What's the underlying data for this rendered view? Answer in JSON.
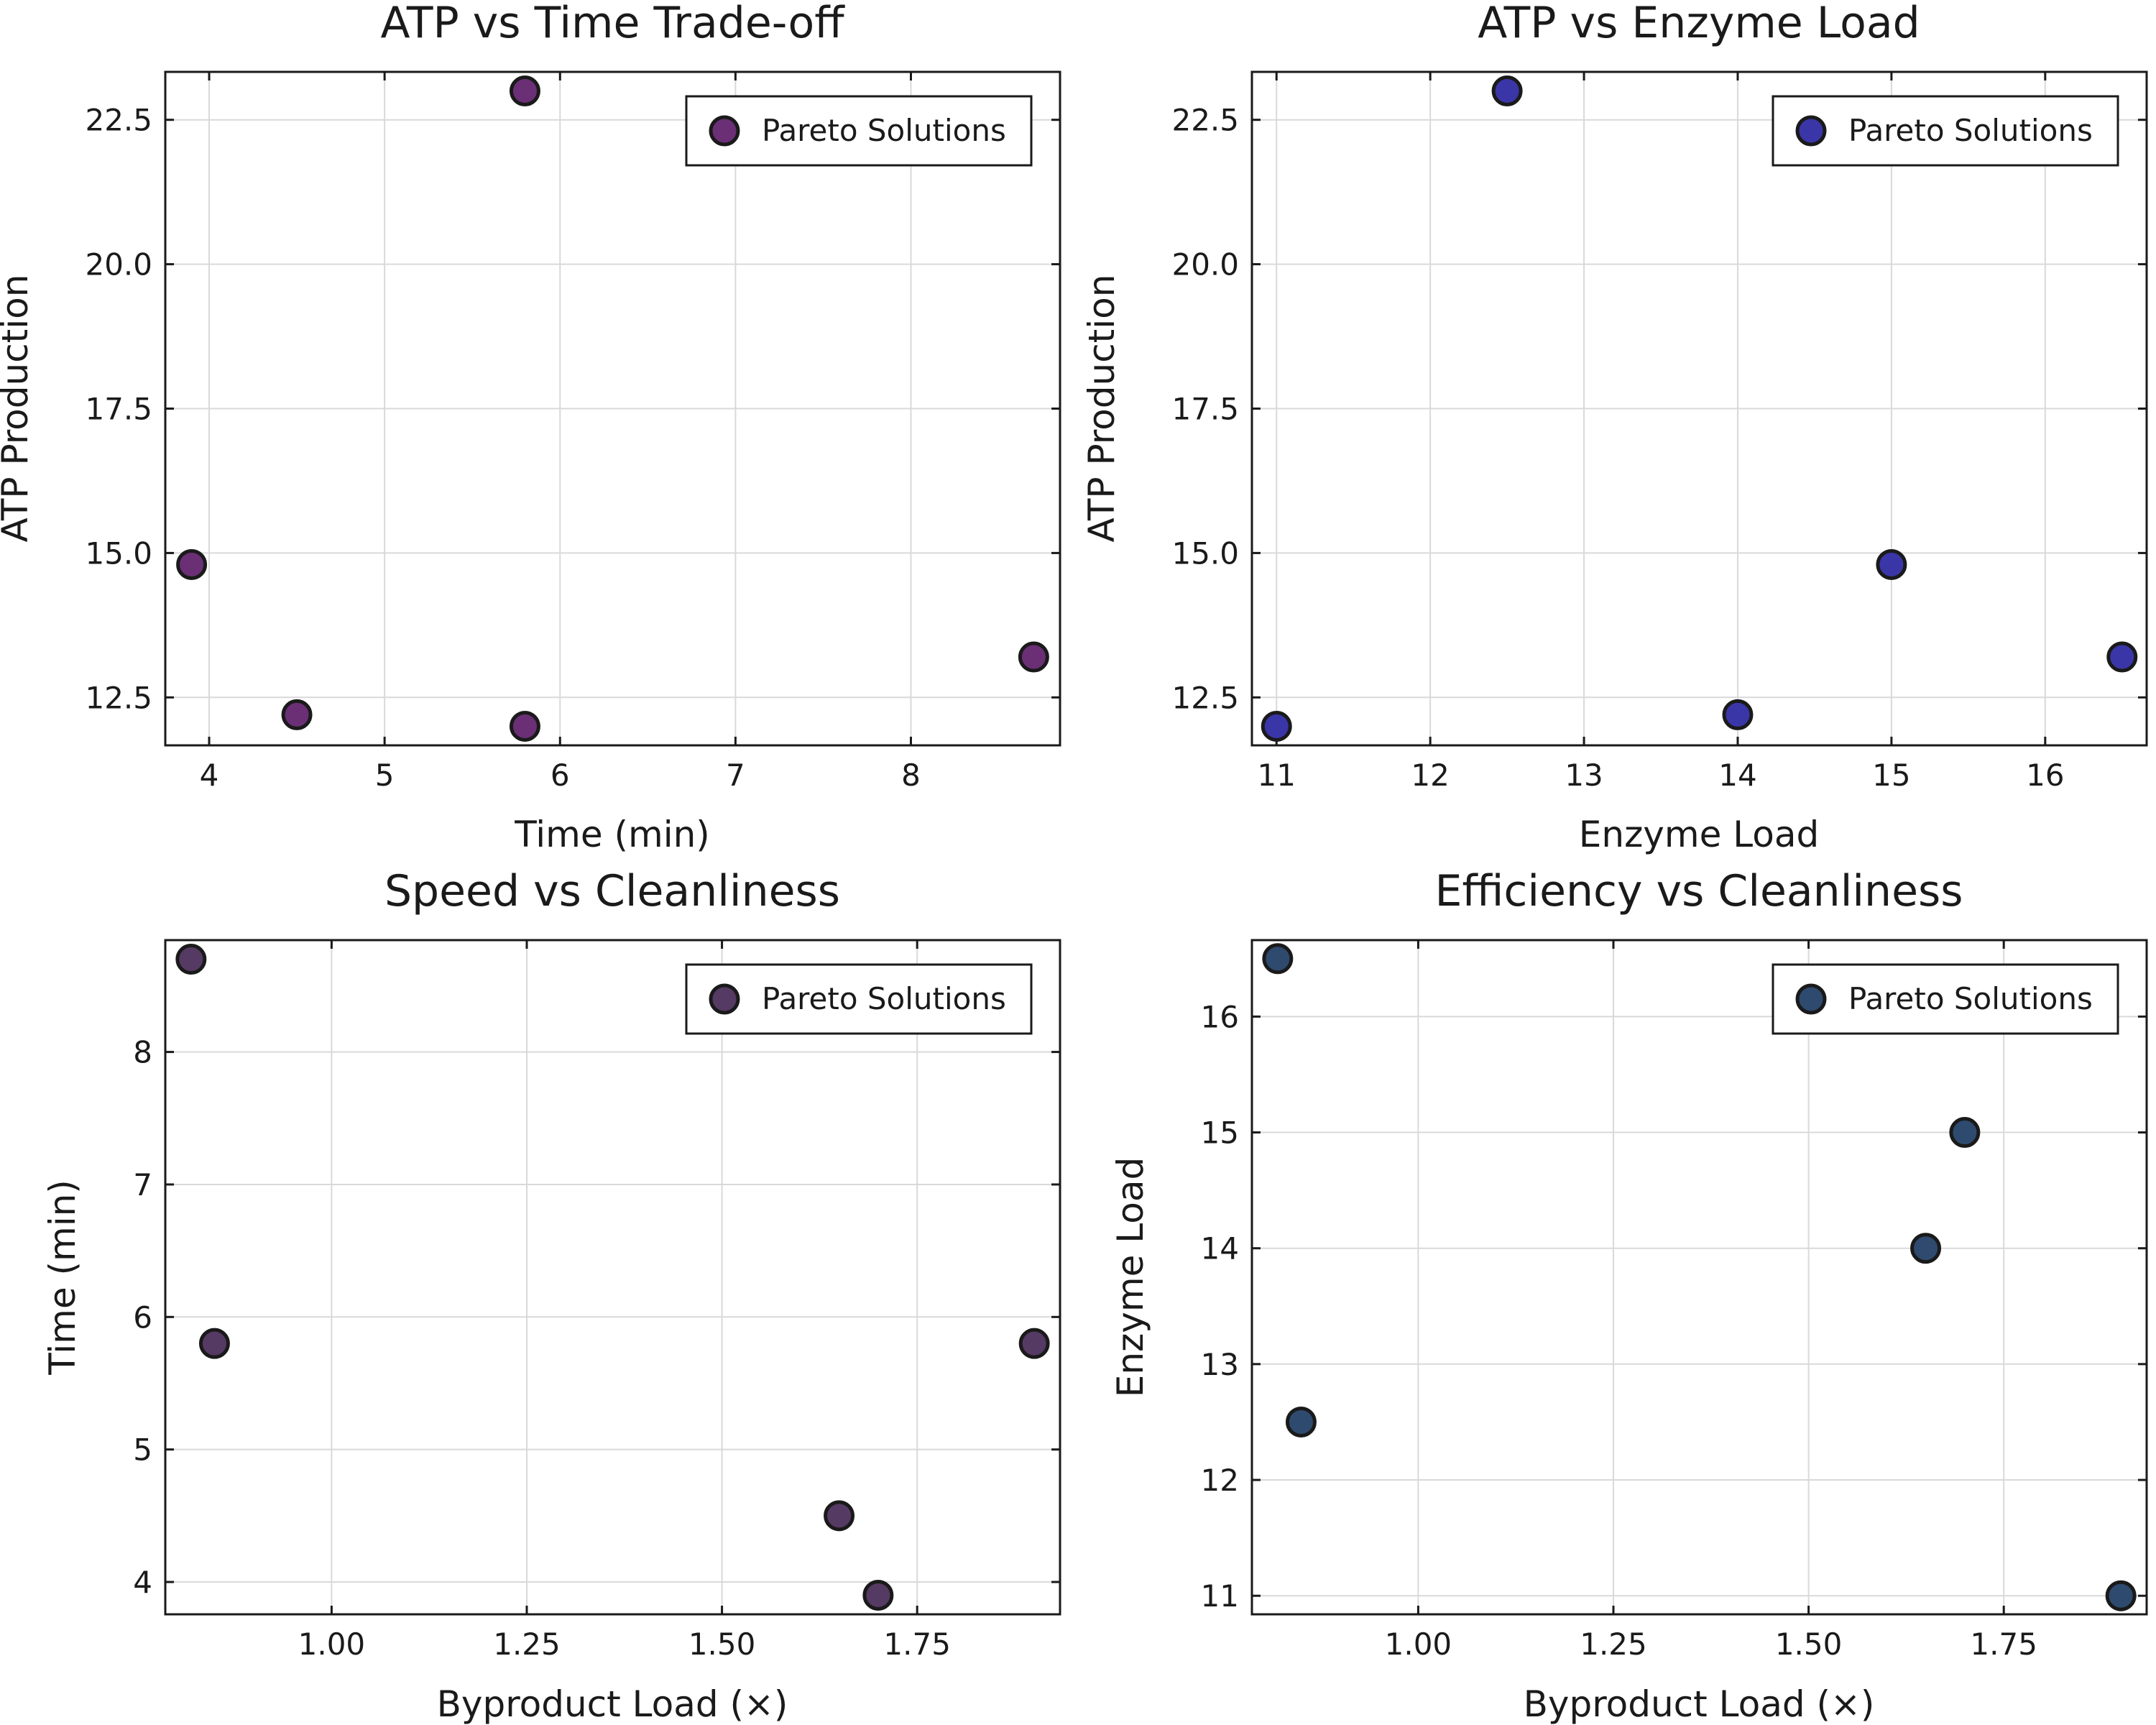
{
  "chart_data": [
    {
      "type": "scatter",
      "title": "ATP vs Time Trade-off",
      "xlabel": "Time (min)",
      "ylabel": "ATP Production",
      "xlim": [
        3.75,
        8.85
      ],
      "ylim": [
        11.67,
        23.33
      ],
      "xticks": [
        4,
        5,
        6,
        7,
        8
      ],
      "yticks": [
        12.5,
        15.0,
        17.5,
        20.0,
        22.5
      ],
      "xtick_labels": [
        "4",
        "5",
        "6",
        "7",
        "8"
      ],
      "ytick_labels": [
        "12.5",
        "15.0",
        "17.5",
        "20.0",
        "22.5"
      ],
      "grid": true,
      "legend": "top-right",
      "series": [
        {
          "name": "Pareto Solutions",
          "color": "#6b2f76",
          "x": [
            3.9,
            4.5,
            5.8,
            5.8,
            8.7
          ],
          "y": [
            14.8,
            12.2,
            12.0,
            23.0,
            13.2
          ]
        }
      ]
    },
    {
      "type": "scatter",
      "title": "ATP vs Enzyme Load",
      "xlabel": "Enzyme Load",
      "ylabel": "ATP Production",
      "xlim": [
        10.84,
        16.66
      ],
      "ylim": [
        11.67,
        23.33
      ],
      "xticks": [
        11,
        12,
        13,
        14,
        15,
        16
      ],
      "yticks": [
        12.5,
        15.0,
        17.5,
        20.0,
        22.5
      ],
      "xtick_labels": [
        "11",
        "12",
        "13",
        "14",
        "15",
        "16"
      ],
      "ytick_labels": [
        "12.5",
        "15.0",
        "17.5",
        "20.0",
        "22.5"
      ],
      "grid": true,
      "legend": "top-right",
      "series": [
        {
          "name": "Pareto Solutions",
          "color": "#3a36a8",
          "x": [
            11.0,
            12.5,
            14.0,
            15.0,
            16.5
          ],
          "y": [
            12.0,
            23.0,
            12.2,
            14.8,
            13.2
          ]
        }
      ]
    },
    {
      "type": "scatter",
      "title": "Speed vs Cleanliness",
      "xlabel": "Byproduct Load (×)",
      "ylabel": "Time (min)",
      "xlim": [
        0.787,
        1.933
      ],
      "ylim": [
        3.756,
        8.844
      ],
      "xticks": [
        1.0,
        1.25,
        1.5,
        1.75
      ],
      "yticks": [
        4,
        5,
        6,
        7,
        8
      ],
      "xtick_labels": [
        "1.00",
        "1.25",
        "1.50",
        "1.75"
      ],
      "ytick_labels": [
        "4",
        "5",
        "6",
        "7",
        "8"
      ],
      "grid": true,
      "legend": "top-right",
      "series": [
        {
          "name": "Pareto Solutions",
          "color": "#553a63",
          "x": [
            0.82,
            0.85,
            1.65,
            1.7,
            1.9
          ],
          "y": [
            8.7,
            5.8,
            4.5,
            3.9,
            5.8
          ]
        }
      ]
    },
    {
      "type": "scatter",
      "title": "Efficiency vs Cleanliness",
      "xlabel": "Byproduct Load (×)",
      "ylabel": "Enzyme Load",
      "xlim": [
        0.787,
        1.933
      ],
      "ylim": [
        10.84,
        16.66
      ],
      "xticks": [
        1.0,
        1.25,
        1.5,
        1.75
      ],
      "yticks": [
        11,
        12,
        13,
        14,
        15,
        16
      ],
      "xtick_labels": [
        "1.00",
        "1.25",
        "1.50",
        "1.75"
      ],
      "ytick_labels": [
        "11",
        "12",
        "13",
        "14",
        "15",
        "16"
      ],
      "grid": true,
      "legend": "top-right",
      "series": [
        {
          "name": "Pareto Solutions",
          "color": "#2e4a6e",
          "x": [
            0.82,
            0.85,
            1.65,
            1.7,
            1.9
          ],
          "y": [
            16.5,
            12.5,
            14.0,
            15.0,
            11.0
          ]
        }
      ]
    }
  ]
}
